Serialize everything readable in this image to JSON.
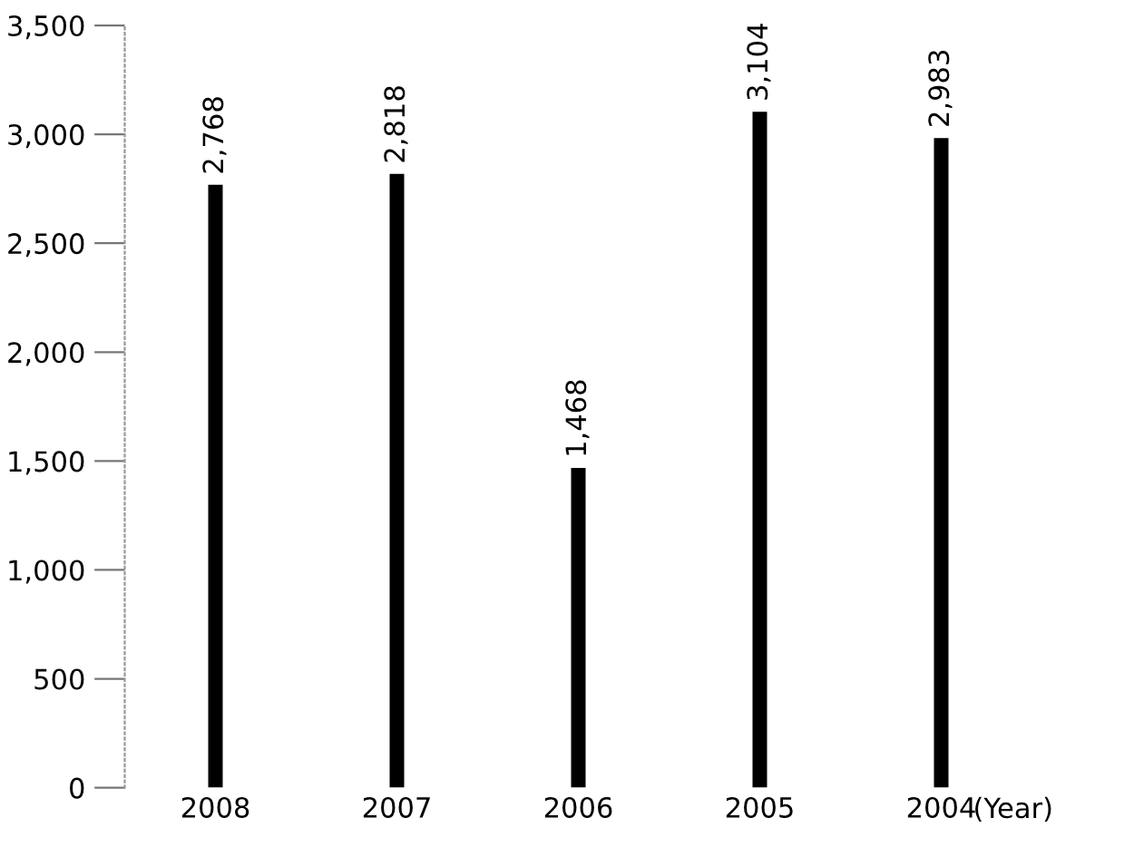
{
  "chart_data": {
    "type": "bar",
    "xlabel": "(Year)",
    "categories": [
      "2008",
      "2007",
      "2006",
      "2005",
      "2004"
    ],
    "values": [
      2768,
      2818,
      1468,
      3104,
      2983
    ],
    "value_labels": [
      "2,768",
      "2,818",
      "1,468",
      "3,104",
      "2,983"
    ],
    "color": "#000000",
    "ylim": [
      0,
      3500
    ],
    "yticks": [
      0,
      {
        "value": 500,
        "label": "500"
      },
      {
        "value": 1000,
        "label": "1,000"
      },
      {
        "value": 1500,
        "label": "1,500"
      },
      {
        "value": 2000,
        "label": "2,000"
      },
      {
        "value": 2500,
        "label": "2,500"
      },
      {
        "value": 3000,
        "label": "3,000"
      },
      {
        "value": 3500,
        "label": "3,500"
      }
    ],
    "grid": false
  }
}
